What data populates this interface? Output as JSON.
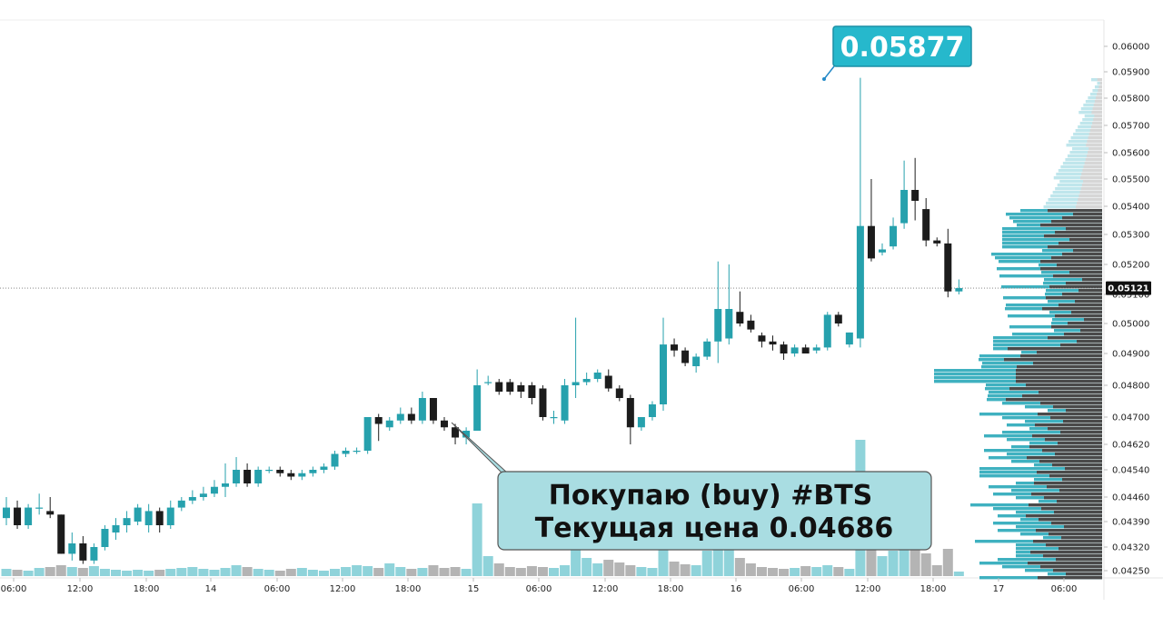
{
  "chart_data": {
    "type": "candlestick",
    "title": "",
    "symbol": "BTS",
    "y_axis": {
      "ticks": [
        "0.06000",
        "0.05900",
        "0.05800",
        "0.05700",
        "0.05600",
        "0.05500",
        "0.05400",
        "0.05300",
        "0.05200",
        "0.05100",
        "0.05000",
        "0.04900",
        "0.04800",
        "0.04700",
        "0.04620",
        "0.04540",
        "0.04460",
        "0.04390",
        "0.04320",
        "0.04250"
      ],
      "ylim": [
        0.0422,
        0.0603
      ],
      "last_price_label": "0.05121",
      "last_price": 0.05121
    },
    "x_axis": {
      "labels": [
        "06:00",
        "12:00",
        "18:00",
        "14",
        "06:00",
        "12:00",
        "18:00",
        "15",
        "06:00",
        "12:00",
        "18:00",
        "16",
        "06:00",
        "12:00",
        "18:00",
        "17",
        "06:00"
      ]
    },
    "candles": [
      {
        "o": 0.044,
        "h": 0.0446,
        "l": 0.0438,
        "c": 0.0443
      },
      {
        "o": 0.0443,
        "h": 0.0445,
        "l": 0.0437,
        "c": 0.0438
      },
      {
        "o": 0.0438,
        "h": 0.0444,
        "l": 0.0437,
        "c": 0.0443
      },
      {
        "o": 0.0443,
        "h": 0.0447,
        "l": 0.0441,
        "c": 0.0443
      },
      {
        "o": 0.0442,
        "h": 0.0446,
        "l": 0.044,
        "c": 0.0441
      },
      {
        "o": 0.0441,
        "h": 0.0441,
        "l": 0.043,
        "c": 0.043
      },
      {
        "o": 0.043,
        "h": 0.0436,
        "l": 0.0428,
        "c": 0.0433
      },
      {
        "o": 0.0433,
        "h": 0.0435,
        "l": 0.0427,
        "c": 0.0428
      },
      {
        "o": 0.0428,
        "h": 0.0433,
        "l": 0.0427,
        "c": 0.0432
      },
      {
        "o": 0.0432,
        "h": 0.0438,
        "l": 0.0431,
        "c": 0.0437
      },
      {
        "o": 0.0436,
        "h": 0.044,
        "l": 0.0434,
        "c": 0.0438
      },
      {
        "o": 0.0438,
        "h": 0.0442,
        "l": 0.0436,
        "c": 0.044
      },
      {
        "o": 0.0439,
        "h": 0.0444,
        "l": 0.0438,
        "c": 0.0443
      },
      {
        "o": 0.0438,
        "h": 0.0444,
        "l": 0.0436,
        "c": 0.0442
      },
      {
        "o": 0.0442,
        "h": 0.0443,
        "l": 0.0436,
        "c": 0.0438
      },
      {
        "o": 0.0438,
        "h": 0.0445,
        "l": 0.0437,
        "c": 0.0443
      },
      {
        "o": 0.0443,
        "h": 0.0446,
        "l": 0.0442,
        "c": 0.0445
      },
      {
        "o": 0.0445,
        "h": 0.0448,
        "l": 0.0444,
        "c": 0.0446
      },
      {
        "o": 0.0446,
        "h": 0.0449,
        "l": 0.0445,
        "c": 0.0447
      },
      {
        "o": 0.0447,
        "h": 0.0451,
        "l": 0.0446,
        "c": 0.0449
      },
      {
        "o": 0.0449,
        "h": 0.0456,
        "l": 0.0446,
        "c": 0.045
      },
      {
        "o": 0.045,
        "h": 0.0458,
        "l": 0.0449,
        "c": 0.0454
      },
      {
        "o": 0.0454,
        "h": 0.0456,
        "l": 0.0449,
        "c": 0.045
      },
      {
        "o": 0.045,
        "h": 0.0455,
        "l": 0.0449,
        "c": 0.0454
      },
      {
        "o": 0.0454,
        "h": 0.0455,
        "l": 0.0453,
        "c": 0.0454
      },
      {
        "o": 0.0454,
        "h": 0.0455,
        "l": 0.0452,
        "c": 0.0453
      },
      {
        "o": 0.0453,
        "h": 0.0454,
        "l": 0.0451,
        "c": 0.0452
      },
      {
        "o": 0.0452,
        "h": 0.0454,
        "l": 0.0451,
        "c": 0.0453
      },
      {
        "o": 0.0453,
        "h": 0.0455,
        "l": 0.0452,
        "c": 0.0454
      },
      {
        "o": 0.0454,
        "h": 0.0456,
        "l": 0.0453,
        "c": 0.0455
      },
      {
        "o": 0.0455,
        "h": 0.046,
        "l": 0.0454,
        "c": 0.0459
      },
      {
        "o": 0.0459,
        "h": 0.0461,
        "l": 0.0458,
        "c": 0.046
      },
      {
        "o": 0.046,
        "h": 0.0461,
        "l": 0.0459,
        "c": 0.046
      },
      {
        "o": 0.046,
        "h": 0.047,
        "l": 0.0459,
        "c": 0.047
      },
      {
        "o": 0.047,
        "h": 0.0471,
        "l": 0.0463,
        "c": 0.0468
      },
      {
        "o": 0.0467,
        "h": 0.047,
        "l": 0.0466,
        "c": 0.0469
      },
      {
        "o": 0.0469,
        "h": 0.0473,
        "l": 0.0468,
        "c": 0.0471
      },
      {
        "o": 0.0471,
        "h": 0.0473,
        "l": 0.0468,
        "c": 0.0469
      },
      {
        "o": 0.0469,
        "h": 0.0478,
        "l": 0.0468,
        "c": 0.0476
      },
      {
        "o": 0.0476,
        "h": 0.0476,
        "l": 0.0468,
        "c": 0.0469
      },
      {
        "o": 0.0469,
        "h": 0.047,
        "l": 0.0466,
        "c": 0.0467
      },
      {
        "o": 0.0467,
        "h": 0.0468,
        "l": 0.0462,
        "c": 0.0464
      },
      {
        "o": 0.0464,
        "h": 0.0467,
        "l": 0.0462,
        "c": 0.0466
      },
      {
        "o": 0.0466,
        "h": 0.0485,
        "l": 0.0466,
        "c": 0.048
      },
      {
        "o": 0.0481,
        "h": 0.0483,
        "l": 0.048,
        "c": 0.0481
      },
      {
        "o": 0.0481,
        "h": 0.0482,
        "l": 0.0477,
        "c": 0.0478
      },
      {
        "o": 0.0481,
        "h": 0.0482,
        "l": 0.0477,
        "c": 0.0478
      },
      {
        "o": 0.048,
        "h": 0.0481,
        "l": 0.0476,
        "c": 0.0478
      },
      {
        "o": 0.048,
        "h": 0.0481,
        "l": 0.0474,
        "c": 0.0476
      },
      {
        "o": 0.0479,
        "h": 0.048,
        "l": 0.0469,
        "c": 0.047
      },
      {
        "o": 0.047,
        "h": 0.0472,
        "l": 0.0468,
        "c": 0.047
      },
      {
        "o": 0.0469,
        "h": 0.0482,
        "l": 0.0468,
        "c": 0.048
      },
      {
        "o": 0.048,
        "h": 0.0502,
        "l": 0.0476,
        "c": 0.0481
      },
      {
        "o": 0.0481,
        "h": 0.0484,
        "l": 0.048,
        "c": 0.0482
      },
      {
        "o": 0.0482,
        "h": 0.0485,
        "l": 0.0481,
        "c": 0.0484
      },
      {
        "o": 0.0483,
        "h": 0.0485,
        "l": 0.0478,
        "c": 0.0479
      },
      {
        "o": 0.0479,
        "h": 0.048,
        "l": 0.0475,
        "c": 0.0476
      },
      {
        "o": 0.0476,
        "h": 0.0477,
        "l": 0.0462,
        "c": 0.0467
      },
      {
        "o": 0.0467,
        "h": 0.047,
        "l": 0.0466,
        "c": 0.047
      },
      {
        "o": 0.047,
        "h": 0.0475,
        "l": 0.0469,
        "c": 0.0474
      },
      {
        "o": 0.0474,
        "h": 0.0502,
        "l": 0.0472,
        "c": 0.0493
      },
      {
        "o": 0.0493,
        "h": 0.0495,
        "l": 0.0489,
        "c": 0.0491
      },
      {
        "o": 0.0491,
        "h": 0.0492,
        "l": 0.0486,
        "c": 0.0487
      },
      {
        "o": 0.0486,
        "h": 0.049,
        "l": 0.0484,
        "c": 0.0489
      },
      {
        "o": 0.0489,
        "h": 0.0495,
        "l": 0.0488,
        "c": 0.0494
      },
      {
        "o": 0.0494,
        "h": 0.0521,
        "l": 0.0487,
        "c": 0.0505
      },
      {
        "o": 0.0495,
        "h": 0.052,
        "l": 0.0493,
        "c": 0.0505
      },
      {
        "o": 0.0504,
        "h": 0.0511,
        "l": 0.0499,
        "c": 0.05
      },
      {
        "o": 0.0501,
        "h": 0.0503,
        "l": 0.0497,
        "c": 0.0498
      },
      {
        "o": 0.0496,
        "h": 0.0497,
        "l": 0.0492,
        "c": 0.0494
      },
      {
        "o": 0.0494,
        "h": 0.0496,
        "l": 0.0491,
        "c": 0.0493
      },
      {
        "o": 0.0493,
        "h": 0.0494,
        "l": 0.0488,
        "c": 0.049
      },
      {
        "o": 0.049,
        "h": 0.0493,
        "l": 0.0489,
        "c": 0.0492
      },
      {
        "o": 0.0492,
        "h": 0.0493,
        "l": 0.049,
        "c": 0.049
      },
      {
        "o": 0.0491,
        "h": 0.0493,
        "l": 0.049,
        "c": 0.0492
      },
      {
        "o": 0.0492,
        "h": 0.0504,
        "l": 0.0491,
        "c": 0.0503
      },
      {
        "o": 0.0503,
        "h": 0.0504,
        "l": 0.0499,
        "c": 0.05
      },
      {
        "o": 0.0493,
        "h": 0.0497,
        "l": 0.0492,
        "c": 0.0497
      },
      {
        "o": 0.0495,
        "h": 0.05877,
        "l": 0.0492,
        "c": 0.0533
      },
      {
        "o": 0.0533,
        "h": 0.055,
        "l": 0.0521,
        "c": 0.0522
      },
      {
        "o": 0.0524,
        "h": 0.0527,
        "l": 0.0523,
        "c": 0.0525
      },
      {
        "o": 0.0526,
        "h": 0.0536,
        "l": 0.0525,
        "c": 0.0533
      },
      {
        "o": 0.0534,
        "h": 0.0557,
        "l": 0.0532,
        "c": 0.0546
      },
      {
        "o": 0.0546,
        "h": 0.0558,
        "l": 0.0535,
        "c": 0.0542
      },
      {
        "o": 0.0539,
        "h": 0.0543,
        "l": 0.0526,
        "c": 0.0528
      },
      {
        "o": 0.0528,
        "h": 0.0529,
        "l": 0.0526,
        "c": 0.0527
      },
      {
        "o": 0.0527,
        "h": 0.0532,
        "l": 0.0509,
        "c": 0.0511
      },
      {
        "o": 0.0511,
        "h": 0.0515,
        "l": 0.051,
        "c": 0.05121
      }
    ],
    "volume_profile_note": "horizontal volume histogram on right side",
    "annotations": {
      "high_label": "0.05877",
      "callout_line1": "Покупаю (buy) #BTS",
      "callout_line2": "Текущая цена 0.04686"
    },
    "colors": {
      "up": "#26a1ad",
      "down": "#1c1c1c",
      "volume_up": "#8fd3da",
      "volume_down": "#b4b4b4",
      "callout_bg": "#a9dde2",
      "label_bg": "#26b8cc"
    }
  }
}
